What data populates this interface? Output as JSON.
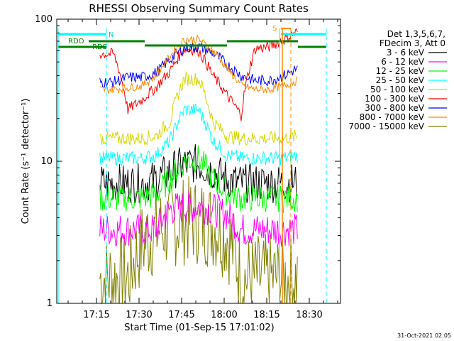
{
  "chart_data": {
    "type": "line",
    "title": "RHESSI Observing Summary Count Rates",
    "xlabel": "Start Time (01-Sep-15 17:01:02)",
    "ylabel": "Count Rate (s⁻¹ detector⁻¹)",
    "y_scale": "log",
    "ylim": [
      1,
      100
    ],
    "xlim_minutes": [
      0,
      100
    ],
    "x_tick_labels": [
      "17:15",
      "17:30",
      "17:45",
      "18:00",
      "18:15",
      "18:30"
    ],
    "y_tick_labels": [
      "1",
      "10",
      "100"
    ],
    "legend_header": [
      "Det 1,3,5,6,7,",
      "FDecim 3, Att 0"
    ],
    "timestamp": "31-Oct-2021 02:05",
    "flags": {
      "rdo": "RDO",
      "rds": "RDS",
      "n": "N",
      "s": "S"
    },
    "series": [
      {
        "name": "3 - 6 keV",
        "color": "#000000",
        "values": [
          null,
          null,
          null,
          7.0,
          7.0,
          7.0,
          7.0,
          7.4,
          8.5,
          9.5,
          9.6,
          8.5,
          7.5,
          7.0,
          7.0,
          7.0,
          7.0,
          7.2,
          null,
          null,
          null
        ]
      },
      {
        "name": "6 - 12 keV",
        "color": "#ff00ff",
        "values": [
          null,
          null,
          null,
          3.3,
          3.3,
          3.3,
          3.3,
          3.3,
          4.6,
          4.8,
          4.8,
          4.6,
          4.2,
          3.3,
          3.3,
          3.3,
          3.3,
          3.3,
          null,
          null,
          null
        ]
      },
      {
        "name": "12 - 25 keV",
        "color": "#00ff00",
        "values": [
          null,
          null,
          null,
          5.5,
          5.5,
          5.5,
          5.5,
          5.8,
          7.5,
          10.0,
          10.5,
          7.5,
          6.0,
          5.5,
          5.5,
          5.5,
          5.5,
          5.5,
          null,
          null,
          null
        ]
      },
      {
        "name": "25 - 50 keV",
        "color": "#00ffff",
        "values": [
          null,
          null,
          null,
          10.5,
          10.5,
          10.5,
          10.5,
          11.0,
          14.0,
          23.0,
          23.0,
          14.0,
          11.0,
          10.5,
          10.5,
          10.5,
          10.5,
          11.0,
          null,
          null,
          null
        ]
      },
      {
        "name": "50 - 100 keV",
        "color": "#d8d800",
        "values": [
          null,
          null,
          null,
          14.5,
          14.5,
          14.5,
          14.5,
          15.0,
          19.0,
          38.0,
          38.0,
          19.0,
          15.0,
          14.5,
          14.5,
          14.5,
          14.5,
          15.0,
          null,
          null,
          null
        ]
      },
      {
        "name": "100 - 300 keV",
        "color": "#ff0000",
        "values": [
          null,
          null,
          null,
          57.0,
          57.0,
          23.0,
          27.0,
          33.0,
          43.0,
          62.0,
          60.0,
          40.0,
          29.0,
          21.0,
          62.0,
          64.0,
          72.0,
          82.0,
          null,
          null,
          null
        ]
      },
      {
        "name": "300 - 800 keV",
        "color": "#0000ff",
        "values": [
          null,
          null,
          null,
          36.0,
          36.0,
          39.0,
          39.0,
          42.0,
          52.0,
          63.0,
          64.0,
          58.0,
          48.0,
          40.0,
          37.0,
          37.0,
          40.0,
          45.0,
          null,
          null,
          null
        ]
      },
      {
        "name": "800 - 7000 keV",
        "color": "#ff8800",
        "values": [
          null,
          null,
          null,
          32.0,
          32.0,
          33.0,
          34.0,
          40.0,
          55.0,
          72.0,
          72.0,
          60.0,
          45.0,
          34.0,
          32.0,
          32.0,
          34.0,
          37.0,
          null,
          null,
          null
        ]
      },
      {
        "name": "7000 - 15000 keV",
        "color": "#808000",
        "values": [
          null,
          null,
          null,
          1.5,
          1.5,
          1.5,
          2.6,
          3.2,
          3.6,
          3.8,
          3.8,
          3.6,
          3.0,
          1.5,
          1.5,
          1.5,
          1.5,
          1.5,
          null,
          null,
          null
        ]
      }
    ]
  }
}
